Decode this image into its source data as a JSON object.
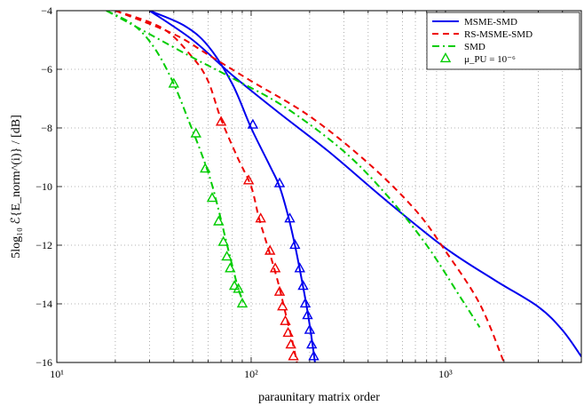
{
  "chart_data": {
    "type": "line",
    "xscale": "log",
    "xlim": [
      10,
      5000
    ],
    "ylim": [
      -16,
      -4
    ],
    "grid": true,
    "legend_position": "top-right",
    "xlabel": "paraunitary matrix order",
    "ylabel": "5log₁₀ ℰ{E_norm^(i)} / [dB]",
    "x_ticks": [
      10,
      100,
      1000
    ],
    "x_tick_labels": [
      "10¹",
      "10²",
      "10³"
    ],
    "y_ticks": [
      -16,
      -14,
      -12,
      -10,
      -8,
      -6,
      -4
    ],
    "y_tick_labels": [
      "−16",
      "−14",
      "−12",
      "−10",
      "−8",
      "−6",
      "−4"
    ],
    "series": [
      {
        "name": "MSME-SMD",
        "color": "#0000ee",
        "dash": "solid",
        "curves": [
          [
            [
              30,
              -4
            ],
            [
              50,
              -5
            ],
            [
              80,
              -6.2
            ],
            [
              140,
              -7.5
            ],
            [
              250,
              -8.8
            ],
            [
              500,
              -10.5
            ],
            [
              1000,
              -12.1
            ],
            [
              1800,
              -13.2
            ],
            [
              3000,
              -14.1
            ],
            [
              4000,
              -14.9
            ],
            [
              5000,
              -15.8
            ]
          ],
          [
            [
              30,
              -4
            ],
            [
              45,
              -4.5
            ],
            [
              60,
              -5.2
            ],
            [
              80,
              -6.5
            ],
            [
              100,
              -8
            ],
            [
              125,
              -9.3
            ],
            [
              140,
              -10
            ],
            [
              155,
              -11
            ],
            [
              168,
              -12
            ],
            [
              180,
              -13
            ],
            [
              192,
              -14
            ],
            [
              203,
              -15
            ],
            [
              213,
              -16
            ]
          ]
        ],
        "markers": [
          [
            102,
            -7.9
          ],
          [
            140,
            -9.9
          ],
          [
            158,
            -11.1
          ],
          [
            168,
            -12.0
          ],
          [
            178,
            -12.8
          ],
          [
            185,
            -13.4
          ],
          [
            190,
            -14.0
          ],
          [
            195,
            -14.4
          ],
          [
            200,
            -14.9
          ],
          [
            205,
            -15.4
          ],
          [
            210,
            -15.8
          ]
        ]
      },
      {
        "name": "RS-MSME-SMD",
        "color": "#ee0000",
        "dash": "dashed",
        "curves": [
          [
            [
              20,
              -4
            ],
            [
              40,
              -4.8
            ],
            [
              60,
              -5.5
            ],
            [
              100,
              -6.4
            ],
            [
              200,
              -7.6
            ],
            [
              400,
              -9.2
            ],
            [
              700,
              -10.8
            ],
            [
              1000,
              -12.2
            ],
            [
              1500,
              -14.0
            ],
            [
              2000,
              -16
            ]
          ],
          [
            [
              20,
              -4
            ],
            [
              35,
              -4.6
            ],
            [
              50,
              -5.6
            ],
            [
              60,
              -6.4
            ],
            [
              70,
              -7.7
            ],
            [
              85,
              -9.0
            ],
            [
              100,
              -10.0
            ],
            [
              110,
              -11.1
            ],
            [
              125,
              -12.3
            ],
            [
              138,
              -13.3
            ],
            [
              150,
              -14.3
            ],
            [
              162,
              -15.2
            ],
            [
              172,
              -16
            ]
          ]
        ],
        "markers": [
          [
            70,
            -7.8
          ],
          [
            97,
            -9.8
          ],
          [
            112,
            -11.1
          ],
          [
            125,
            -12.2
          ],
          [
            133,
            -12.8
          ],
          [
            140,
            -13.6
          ],
          [
            145,
            -14.1
          ],
          [
            150,
            -14.6
          ],
          [
            155,
            -15.0
          ],
          [
            160,
            -15.4
          ],
          [
            165,
            -15.8
          ]
        ]
      },
      {
        "name": "SMD",
        "color": "#00cc00",
        "dash": "dashdot",
        "curves": [
          [
            [
              18,
              -4
            ],
            [
              30,
              -4.8
            ],
            [
              50,
              -5.6
            ],
            [
              80,
              -6.3
            ],
            [
              150,
              -7.3
            ],
            [
              300,
              -8.8
            ],
            [
              500,
              -10.3
            ],
            [
              800,
              -12.0
            ],
            [
              1200,
              -13.8
            ],
            [
              1500,
              -14.8
            ]
          ],
          [
            [
              18,
              -4
            ],
            [
              25,
              -4.5
            ],
            [
              32,
              -5.3
            ],
            [
              40,
              -6.5
            ],
            [
              48,
              -7.8
            ],
            [
              55,
              -8.8
            ],
            [
              62,
              -9.8
            ],
            [
              68,
              -10.8
            ],
            [
              74,
              -11.8
            ],
            [
              80,
              -12.7
            ],
            [
              86,
              -13.5
            ],
            [
              92,
              -14.0
            ]
          ]
        ],
        "markers": [
          [
            40,
            -6.5
          ],
          [
            52,
            -8.2
          ],
          [
            58,
            -9.4
          ],
          [
            63,
            -10.4
          ],
          [
            68,
            -11.2
          ],
          [
            72,
            -11.9
          ],
          [
            75,
            -12.4
          ],
          [
            78,
            -12.8
          ],
          [
            82,
            -13.4
          ],
          [
            86,
            -13.5
          ],
          [
            90,
            -14.0
          ]
        ]
      }
    ],
    "legend": [
      {
        "label": "MSME-SMD",
        "style": "line",
        "color": "#0000ee",
        "dash": "solid"
      },
      {
        "label": "RS-MSME-SMD",
        "style": "line",
        "color": "#ee0000",
        "dash": "dashed"
      },
      {
        "label": "SMD",
        "style": "line",
        "color": "#00cc00",
        "dash": "dashdot"
      },
      {
        "label": "μ_PU = 10⁻⁶",
        "style": "marker",
        "color": "#00cc00",
        "marker": "triangle"
      }
    ]
  }
}
